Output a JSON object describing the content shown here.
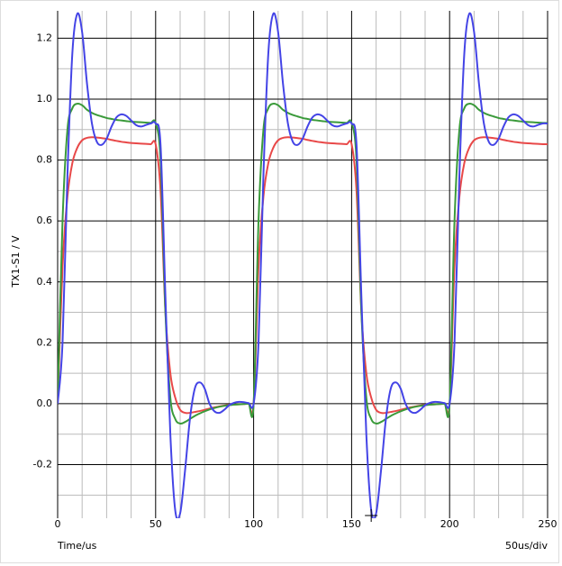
{
  "chart_data": {
    "type": "line",
    "ylabel": "TX1-S1 / V",
    "xlabel": "Time/us",
    "scale_note": "50us/div",
    "x": [
      0,
      2.5,
      5,
      7.5,
      10,
      12.5,
      15,
      17.5,
      20,
      22.5,
      25,
      27.5,
      30,
      32.5,
      35,
      37.5,
      40,
      42.5,
      45,
      47.5,
      50,
      52.5,
      55,
      57.5,
      60,
      62.5,
      65,
      67.5,
      70,
      72.5,
      75,
      77.5,
      80,
      82.5,
      85,
      87.5,
      90,
      92.5,
      95,
      97.5,
      100,
      102.5,
      105,
      107.5,
      110,
      112.5,
      115,
      117.5,
      120,
      122.5,
      125,
      127.5,
      130,
      132.5,
      135,
      137.5,
      140,
      142.5,
      145,
      147.5,
      150,
      152.5,
      155,
      157.5,
      160,
      162.5,
      165,
      167.5,
      170,
      172.5,
      175,
      177.5,
      180,
      182.5,
      185,
      187.5,
      190,
      192.5,
      195,
      197.5,
      200,
      202.5,
      205,
      207.5,
      210,
      212.5,
      215,
      217.5,
      220,
      222.5,
      225,
      227.5,
      230,
      232.5,
      235,
      237.5,
      240,
      242.5,
      245,
      247.5,
      250
    ],
    "series": [
      {
        "color": "#e84848",
        "values": [
          0,
          0.45,
          0.68,
          0.79,
          0.84,
          0.865,
          0.873,
          0.875,
          0.874,
          0.872,
          0.87,
          0.866,
          0.863,
          0.86,
          0.858,
          0.856,
          0.855,
          0.854,
          0.853,
          0.852,
          0.852,
          0.7,
          0.3,
          0.1,
          0.02,
          -0.02,
          -0.03,
          -0.03,
          -0.027,
          -0.024,
          -0.02,
          -0.016,
          -0.012,
          -0.009,
          -0.006,
          -0.004,
          -0.003,
          -0.002,
          -0.001,
          0,
          0,
          0.45,
          0.68,
          0.79,
          0.84,
          0.865,
          0.873,
          0.875,
          0.874,
          0.872,
          0.87,
          0.866,
          0.863,
          0.86,
          0.858,
          0.856,
          0.855,
          0.854,
          0.853,
          0.852,
          0.852,
          0.7,
          0.3,
          0.1,
          0.02,
          -0.02,
          -0.03,
          -0.03,
          -0.027,
          -0.024,
          -0.02,
          -0.016,
          -0.012,
          -0.009,
          -0.006,
          -0.004,
          -0.003,
          -0.002,
          -0.001,
          0,
          0,
          0.45,
          0.68,
          0.79,
          0.84,
          0.865,
          0.873,
          0.875,
          0.874,
          0.872,
          0.87,
          0.866,
          0.863,
          0.86,
          0.858,
          0.856,
          0.855,
          0.854,
          0.853,
          0.852,
          0.852
        ]
      },
      {
        "color": "#3a9a3a",
        "values": [
          0,
          0.6,
          0.9,
          0.97,
          0.985,
          0.98,
          0.965,
          0.955,
          0.948,
          0.943,
          0.938,
          0.935,
          0.932,
          0.93,
          0.928,
          0.926,
          0.925,
          0.924,
          0.923,
          0.922,
          0.922,
          0.8,
          0.3,
          0.02,
          -0.05,
          -0.065,
          -0.06,
          -0.05,
          -0.04,
          -0.032,
          -0.025,
          -0.019,
          -0.014,
          -0.01,
          -0.007,
          -0.005,
          -0.003,
          -0.002,
          -0.001,
          0,
          0,
          0.6,
          0.9,
          0.97,
          0.985,
          0.98,
          0.965,
          0.955,
          0.948,
          0.943,
          0.938,
          0.935,
          0.932,
          0.93,
          0.928,
          0.926,
          0.925,
          0.924,
          0.923,
          0.922,
          0.922,
          0.8,
          0.3,
          0.02,
          -0.05,
          -0.065,
          -0.06,
          -0.05,
          -0.04,
          -0.032,
          -0.025,
          -0.019,
          -0.014,
          -0.01,
          -0.007,
          -0.005,
          -0.003,
          -0.002,
          -0.001,
          0,
          0,
          0.6,
          0.9,
          0.97,
          0.985,
          0.98,
          0.965,
          0.955,
          0.948,
          0.943,
          0.938,
          0.935,
          0.932,
          0.93,
          0.928,
          0.926,
          0.925,
          0.924,
          0.923,
          0.922,
          0.922
        ]
      },
      {
        "color": "#4444e6",
        "values": [
          0,
          0.2,
          0.75,
          1.15,
          1.28,
          1.22,
          1.05,
          0.92,
          0.86,
          0.85,
          0.87,
          0.91,
          0.94,
          0.95,
          0.945,
          0.93,
          0.915,
          0.91,
          0.915,
          0.92,
          0.92,
          0.85,
          0.35,
          -0.1,
          -0.35,
          -0.36,
          -0.22,
          -0.05,
          0.05,
          0.07,
          0.05,
          0,
          -0.025,
          -0.03,
          -0.02,
          -0.005,
          0.003,
          0.006,
          0.005,
          0.002,
          0,
          0.2,
          0.75,
          1.15,
          1.28,
          1.22,
          1.05,
          0.92,
          0.86,
          0.85,
          0.87,
          0.91,
          0.94,
          0.95,
          0.945,
          0.93,
          0.915,
          0.91,
          0.915,
          0.92,
          0.92,
          0.85,
          0.35,
          -0.1,
          -0.35,
          -0.36,
          -0.22,
          -0.05,
          0.05,
          0.07,
          0.05,
          0,
          -0.025,
          -0.03,
          -0.02,
          -0.005,
          0.003,
          0.006,
          0.005,
          0.002,
          0,
          0.2,
          0.75,
          1.15,
          1.28,
          1.22,
          1.05,
          0.92,
          0.86,
          0.85,
          0.87,
          0.91,
          0.94,
          0.95,
          0.945,
          0.93,
          0.915,
          0.91,
          0.915,
          0.92,
          0.92
        ]
      }
    ],
    "xlim": [
      0,
      250
    ],
    "xticks": [
      0,
      50,
      100,
      150,
      200,
      250
    ],
    "minor_xticks": [
      12.5,
      25,
      37.5,
      62.5,
      75,
      87.5,
      112.5,
      125,
      137.5,
      162.5,
      175,
      187.5,
      212.5,
      225,
      237.5
    ],
    "ylim": [
      -0.376,
      1.29
    ],
    "yticks": [
      {
        "value": -0.2,
        "label": "-0.2"
      },
      {
        "value": 0,
        "label": "0.0"
      },
      {
        "value": 0.2,
        "label": "0.2"
      },
      {
        "value": 0.4,
        "label": "0.4"
      },
      {
        "value": 0.6,
        "label": "0.6"
      },
      {
        "value": 0.8,
        "label": "0.8"
      },
      {
        "value": 1.0,
        "label": "1.0"
      },
      {
        "value": 1.2,
        "label": "1.2"
      }
    ],
    "minor_yticks": [
      -0.3,
      -0.1,
      0.1,
      0.3,
      0.5,
      0.7,
      0.9,
      1.1
    ],
    "grid": true
  }
}
